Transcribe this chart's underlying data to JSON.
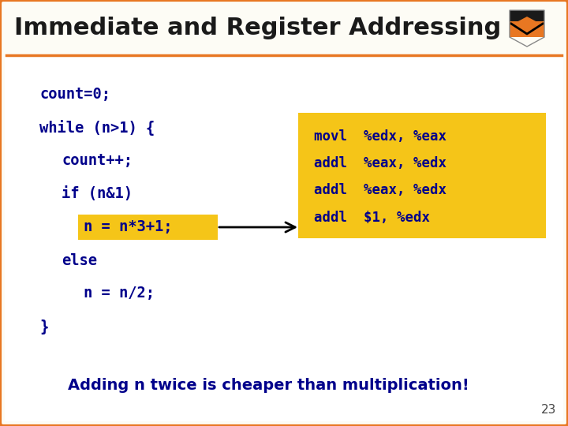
{
  "title": "Immediate and Register Addressing",
  "title_color": "#000000",
  "title_bg_color": "#FFFFFF",
  "slide_bg_color": "#FDFCF5",
  "slide_border_color": "#E87722",
  "content_bg_color": "#FFFFFF",
  "code_color": "#00008B",
  "highlight_bg": "#F5C518",
  "asm_bg": "#F5C518",
  "code_lines": [
    {
      "text": "count=0;",
      "indent": 0
    },
    {
      "text": "while (n>1) {",
      "indent": 0
    },
    {
      "text": "count++;",
      "indent": 1
    },
    {
      "text": "if (n&1)",
      "indent": 1
    },
    {
      "text": "n = n*3+1;",
      "indent": 2,
      "highlight": true
    },
    {
      "text": "else",
      "indent": 1
    },
    {
      "text": "n = n/2;",
      "indent": 2
    },
    {
      "text": "}",
      "indent": 0
    }
  ],
  "asm_lines": [
    "movl  %edx, %eax",
    "addl  %eax, %edx",
    "addl  %eax, %edx",
    "addl  $1, %edx"
  ],
  "bottom_text": "Adding n twice is cheaper than multiplication!",
  "bottom_text_color": "#00008B",
  "page_num": "23"
}
